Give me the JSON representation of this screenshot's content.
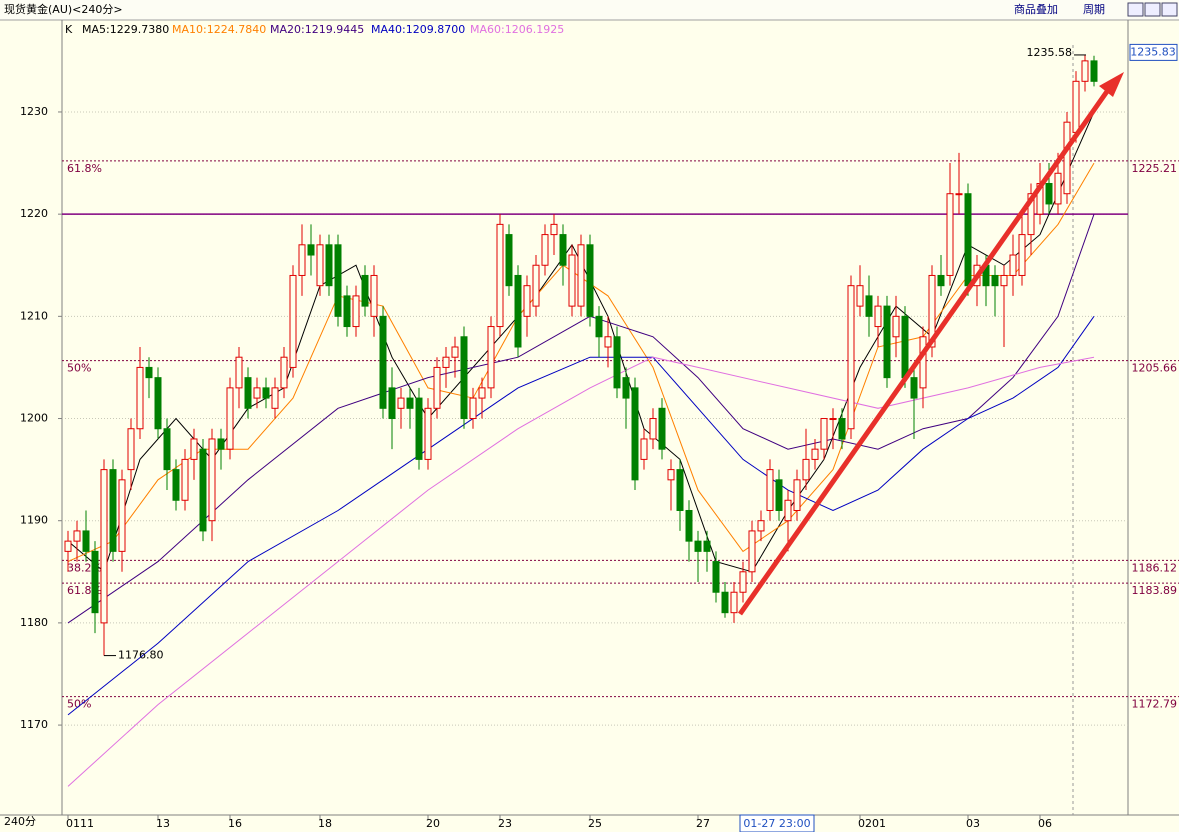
{
  "chart_data": {
    "type": "candlestick",
    "title": "现货黄金(AU)<240分>",
    "toolbar": [
      "商品叠加",
      "周期"
    ],
    "period_label": "240分",
    "legend_prefix": "K",
    "cursor_label": "01-27 23:00",
    "up_color": "#e00000",
    "down_color": "#008000",
    "ylim": [
      1161.2,
      1239
    ],
    "yticks": [
      1170,
      1180,
      1190,
      1200,
      1210,
      1220,
      1230
    ],
    "grid": true,
    "last_price": 1235.83,
    "high_marker": 1235.58,
    "low_marker": {
      "value": 1176.8,
      "label": "1176.80"
    },
    "hline": {
      "value": 1220,
      "color": "#800080"
    },
    "levels": [
      {
        "name": "61.8%",
        "value": 1225.21
      },
      {
        "name": "50%",
        "value": 1205.66
      },
      {
        "name": "38.2%",
        "value": 1186.12
      },
      {
        "name": "61.8%",
        "value": 1183.89
      },
      {
        "name": "50%",
        "value": 1172.79
      }
    ],
    "categories": [
      "0111",
      null,
      null,
      null,
      null,
      null,
      null,
      null,
      null,
      null,
      "13",
      null,
      null,
      null,
      null,
      null,
      null,
      null,
      "16",
      null,
      null,
      null,
      null,
      null,
      null,
      null,
      null,
      null,
      "18",
      null,
      null,
      null,
      null,
      null,
      null,
      null,
      null,
      null,
      null,
      null,
      "20",
      null,
      null,
      null,
      null,
      null,
      null,
      null,
      "23",
      null,
      null,
      null,
      null,
      null,
      null,
      null,
      null,
      null,
      "25",
      null,
      null,
      null,
      null,
      null,
      null,
      null,
      null,
      null,
      null,
      null,
      "27",
      null,
      null,
      null,
      null,
      null,
      null,
      null,
      null,
      null,
      null,
      null,
      null,
      null,
      null,
      null,
      null,
      null,
      "0201",
      null,
      null,
      null,
      null,
      null,
      null,
      null,
      null,
      null,
      null,
      null,
      "03",
      null,
      null,
      null,
      null,
      null,
      null,
      null,
      "06",
      null,
      null,
      null,
      null,
      null,
      null
    ],
    "candles": [
      [
        1187,
        1189,
        1185,
        1188
      ],
      [
        1188,
        1190,
        1186,
        1189
      ],
      [
        1189,
        1191,
        1186,
        1187
      ],
      [
        1187,
        1188,
        1179,
        1181
      ],
      [
        1180,
        1196,
        1176.8,
        1195
      ],
      [
        1195,
        1196,
        1186,
        1187
      ],
      [
        1187,
        1195,
        1185,
        1194
      ],
      [
        1195,
        1200,
        1193,
        1199
      ],
      [
        1199,
        1207,
        1198,
        1205
      ],
      [
        1205,
        1206,
        1202,
        1204
      ],
      [
        1204,
        1205,
        1198,
        1199
      ],
      [
        1199,
        1200,
        1193,
        1195
      ],
      [
        1195,
        1196,
        1191,
        1192
      ],
      [
        1192,
        1197,
        1191,
        1196
      ],
      [
        1196,
        1199,
        1194,
        1198
      ],
      [
        1197,
        1198,
        1188,
        1189
      ],
      [
        1190,
        1199,
        1188,
        1198
      ],
      [
        1198,
        1199,
        1195,
        1197
      ],
      [
        1197,
        1204,
        1196,
        1203
      ],
      [
        1203,
        1207,
        1201,
        1206
      ],
      [
        1204,
        1205,
        1200,
        1201
      ],
      [
        1202,
        1204,
        1201,
        1203
      ],
      [
        1203,
        1204,
        1201,
        1202
      ],
      [
        1201,
        1204,
        1200,
        1203
      ],
      [
        1203,
        1207,
        1202,
        1206
      ],
      [
        1205,
        1215,
        1204,
        1214
      ],
      [
        1214,
        1219,
        1212,
        1217
      ],
      [
        1217,
        1219,
        1214,
        1216
      ],
      [
        1213,
        1218,
        1212,
        1217
      ],
      [
        1217,
        1218,
        1212,
        1213
      ],
      [
        1217,
        1218,
        1209,
        1210
      ],
      [
        1212,
        1213,
        1208,
        1209
      ],
      [
        1209,
        1213,
        1208,
        1212
      ],
      [
        1214,
        1215,
        1210,
        1211
      ],
      [
        1210,
        1215,
        1208,
        1214
      ],
      [
        1210,
        1211,
        1200,
        1201
      ],
      [
        1203,
        1205,
        1197,
        1200
      ],
      [
        1201,
        1203,
        1199,
        1202
      ],
      [
        1202,
        1203,
        1199,
        1201
      ],
      [
        1202,
        1203,
        1195,
        1196
      ],
      [
        1196,
        1202,
        1195,
        1201
      ],
      [
        1201,
        1206,
        1200,
        1205
      ],
      [
        1205,
        1207,
        1203,
        1206
      ],
      [
        1206,
        1208,
        1204,
        1207
      ],
      [
        1208,
        1209,
        1199,
        1200
      ],
      [
        1200,
        1203,
        1199,
        1202
      ],
      [
        1202,
        1204,
        1200,
        1203
      ],
      [
        1203,
        1210,
        1202,
        1209
      ],
      [
        1209,
        1220,
        1208,
        1219
      ],
      [
        1218,
        1219,
        1212,
        1213
      ],
      [
        1214,
        1215,
        1206,
        1207
      ],
      [
        1210,
        1214,
        1208,
        1213
      ],
      [
        1211,
        1216,
        1210,
        1215
      ],
      [
        1215,
        1219,
        1214,
        1218
      ],
      [
        1218,
        1220,
        1216,
        1219
      ],
      [
        1218,
        1219,
        1213,
        1215
      ],
      [
        1211,
        1217,
        1210,
        1216
      ],
      [
        1211,
        1218,
        1210,
        1217
      ],
      [
        1217,
        1218,
        1209,
        1210
      ],
      [
        1210,
        1211,
        1206,
        1208
      ],
      [
        1207,
        1210,
        1205,
        1208
      ],
      [
        1208,
        1209,
        1202,
        1203
      ],
      [
        1204,
        1205,
        1199,
        1202
      ],
      [
        1203,
        1204,
        1193,
        1194
      ],
      [
        1196,
        1199,
        1195,
        1198
      ],
      [
        1198,
        1201,
        1197,
        1200
      ],
      [
        1201,
        1202,
        1196,
        1197
      ],
      [
        1194,
        1196,
        1191,
        1195
      ],
      [
        1195,
        1196,
        1189,
        1191
      ],
      [
        1191,
        1192,
        1186,
        1188
      ],
      [
        1188,
        1189,
        1184,
        1187
      ],
      [
        1188,
        1189,
        1185,
        1187
      ],
      [
        1186,
        1187,
        1182,
        1183
      ],
      [
        1183,
        1184,
        1180.5,
        1181
      ],
      [
        1181,
        1184,
        1180,
        1183
      ],
      [
        1183,
        1186,
        1182,
        1185
      ],
      [
        1185,
        1190,
        1184,
        1189
      ],
      [
        1189,
        1191,
        1188,
        1190
      ],
      [
        1191,
        1196,
        1190,
        1195
      ],
      [
        1194,
        1195,
        1190,
        1191
      ],
      [
        1190,
        1193,
        1187,
        1192
      ],
      [
        1191,
        1195,
        1190,
        1194
      ],
      [
        1194,
        1199,
        1193,
        1196
      ],
      [
        1196,
        1198,
        1195,
        1197
      ],
      [
        1197,
        1200,
        1196,
        1200
      ],
      [
        1200,
        1201,
        1197,
        1200
      ],
      [
        1200,
        1201,
        1197,
        1198
      ],
      [
        1199,
        1214,
        1198,
        1213
      ],
      [
        1211,
        1215,
        1210,
        1213
      ],
      [
        1212,
        1214,
        1208,
        1210
      ],
      [
        1209,
        1212,
        1207,
        1211
      ],
      [
        1211,
        1212,
        1203,
        1204
      ],
      [
        1208,
        1212,
        1206,
        1210
      ],
      [
        1210,
        1211,
        1203,
        1204
      ],
      [
        1204,
        1205,
        1198,
        1202
      ],
      [
        1203,
        1209,
        1201,
        1208
      ],
      [
        1207,
        1215,
        1206,
        1214
      ],
      [
        1214,
        1216,
        1212,
        1213
      ],
      [
        1214,
        1225,
        1213,
        1222
      ],
      [
        1222,
        1226,
        1220,
        1222
      ],
      [
        1222,
        1223,
        1212,
        1213
      ],
      [
        1213,
        1216,
        1211,
        1215
      ],
      [
        1215,
        1216,
        1211,
        1213
      ],
      [
        1214,
        1215,
        1210,
        1213
      ],
      [
        1213,
        1215,
        1207,
        1214
      ],
      [
        1214,
        1218,
        1212,
        1216
      ],
      [
        1214,
        1220,
        1213,
        1218
      ],
      [
        1218,
        1223,
        1216,
        1222
      ],
      [
        1220,
        1225,
        1219,
        1223
      ],
      [
        1223,
        1225,
        1220,
        1221
      ],
      [
        1221,
        1226,
        1220,
        1224
      ],
      [
        1222,
        1230,
        1221,
        1229
      ],
      [
        1228,
        1234,
        1227,
        1233
      ],
      [
        1233,
        1235.58,
        1232,
        1235
      ],
      [
        1235,
        1235.5,
        1232.5,
        1233
      ]
    ],
    "series": [
      {
        "name": "MA5:1229.7380",
        "color": "#000000",
        "x": [
          0,
          4,
          8,
          12,
          16,
          20,
          24,
          28,
          32,
          36,
          40,
          44,
          48,
          52,
          56,
          60,
          64,
          68,
          72,
          76,
          80,
          84,
          88,
          92,
          96,
          100,
          104,
          108,
          112,
          114
        ],
        "values": [
          1188,
          1185,
          1196,
          1200,
          1196,
          1201,
          1203,
          1213,
          1215,
          1206,
          1200,
          1204,
          1208,
          1212,
          1217,
          1210,
          1199,
          1196,
          1186,
          1185,
          1191,
          1196,
          1205,
          1211,
          1208,
          1217,
          1215,
          1218,
          1226,
          1230
        ]
      },
      {
        "name": "MA10:1224.7840",
        "color": "#ff8000",
        "x": [
          0,
          5,
          10,
          15,
          20,
          25,
          30,
          35,
          40,
          45,
          50,
          55,
          60,
          65,
          70,
          75,
          80,
          85,
          90,
          95,
          100,
          105,
          110,
          114
        ],
        "values": [
          1186,
          1188,
          1194,
          1197,
          1197,
          1202,
          1212,
          1211,
          1203,
          1202,
          1210,
          1215,
          1212,
          1205,
          1193,
          1187,
          1190,
          1195,
          1207,
          1208,
          1214,
          1214,
          1219,
          1225
        ]
      },
      {
        "name": "MA20:1219.9445",
        "color": "#400080",
        "x": [
          0,
          10,
          20,
          30,
          40,
          50,
          58,
          65,
          70,
          75,
          80,
          85,
          90,
          95,
          100,
          105,
          110,
          114
        ],
        "values": [
          1180,
          1186,
          1194,
          1201,
          1204,
          1206,
          1210,
          1208,
          1204,
          1199,
          1197,
          1198,
          1197,
          1199,
          1200,
          1204,
          1210,
          1220
        ]
      },
      {
        "name": "MA40:1209.8700",
        "color": "#0000c0",
        "x": [
          0,
          10,
          20,
          30,
          40,
          50,
          58,
          65,
          70,
          75,
          80,
          85,
          90,
          95,
          100,
          105,
          110,
          114
        ],
        "values": [
          1171,
          1178,
          1186,
          1191,
          1197,
          1203,
          1206,
          1206,
          1201,
          1196,
          1193,
          1191,
          1193,
          1197,
          1200,
          1202,
          1205,
          1210
        ]
      },
      {
        "name": "MA60:1206.1925",
        "color": "#e070e0",
        "x": [
          0,
          10,
          20,
          30,
          40,
          50,
          58,
          65,
          70,
          80,
          90,
          100,
          108,
          114
        ],
        "values": [
          1164,
          1172,
          1179,
          1186,
          1193,
          1199,
          1203,
          1206,
          1205,
          1203,
          1201,
          1203,
          1205,
          1206
        ]
      }
    ]
  }
}
